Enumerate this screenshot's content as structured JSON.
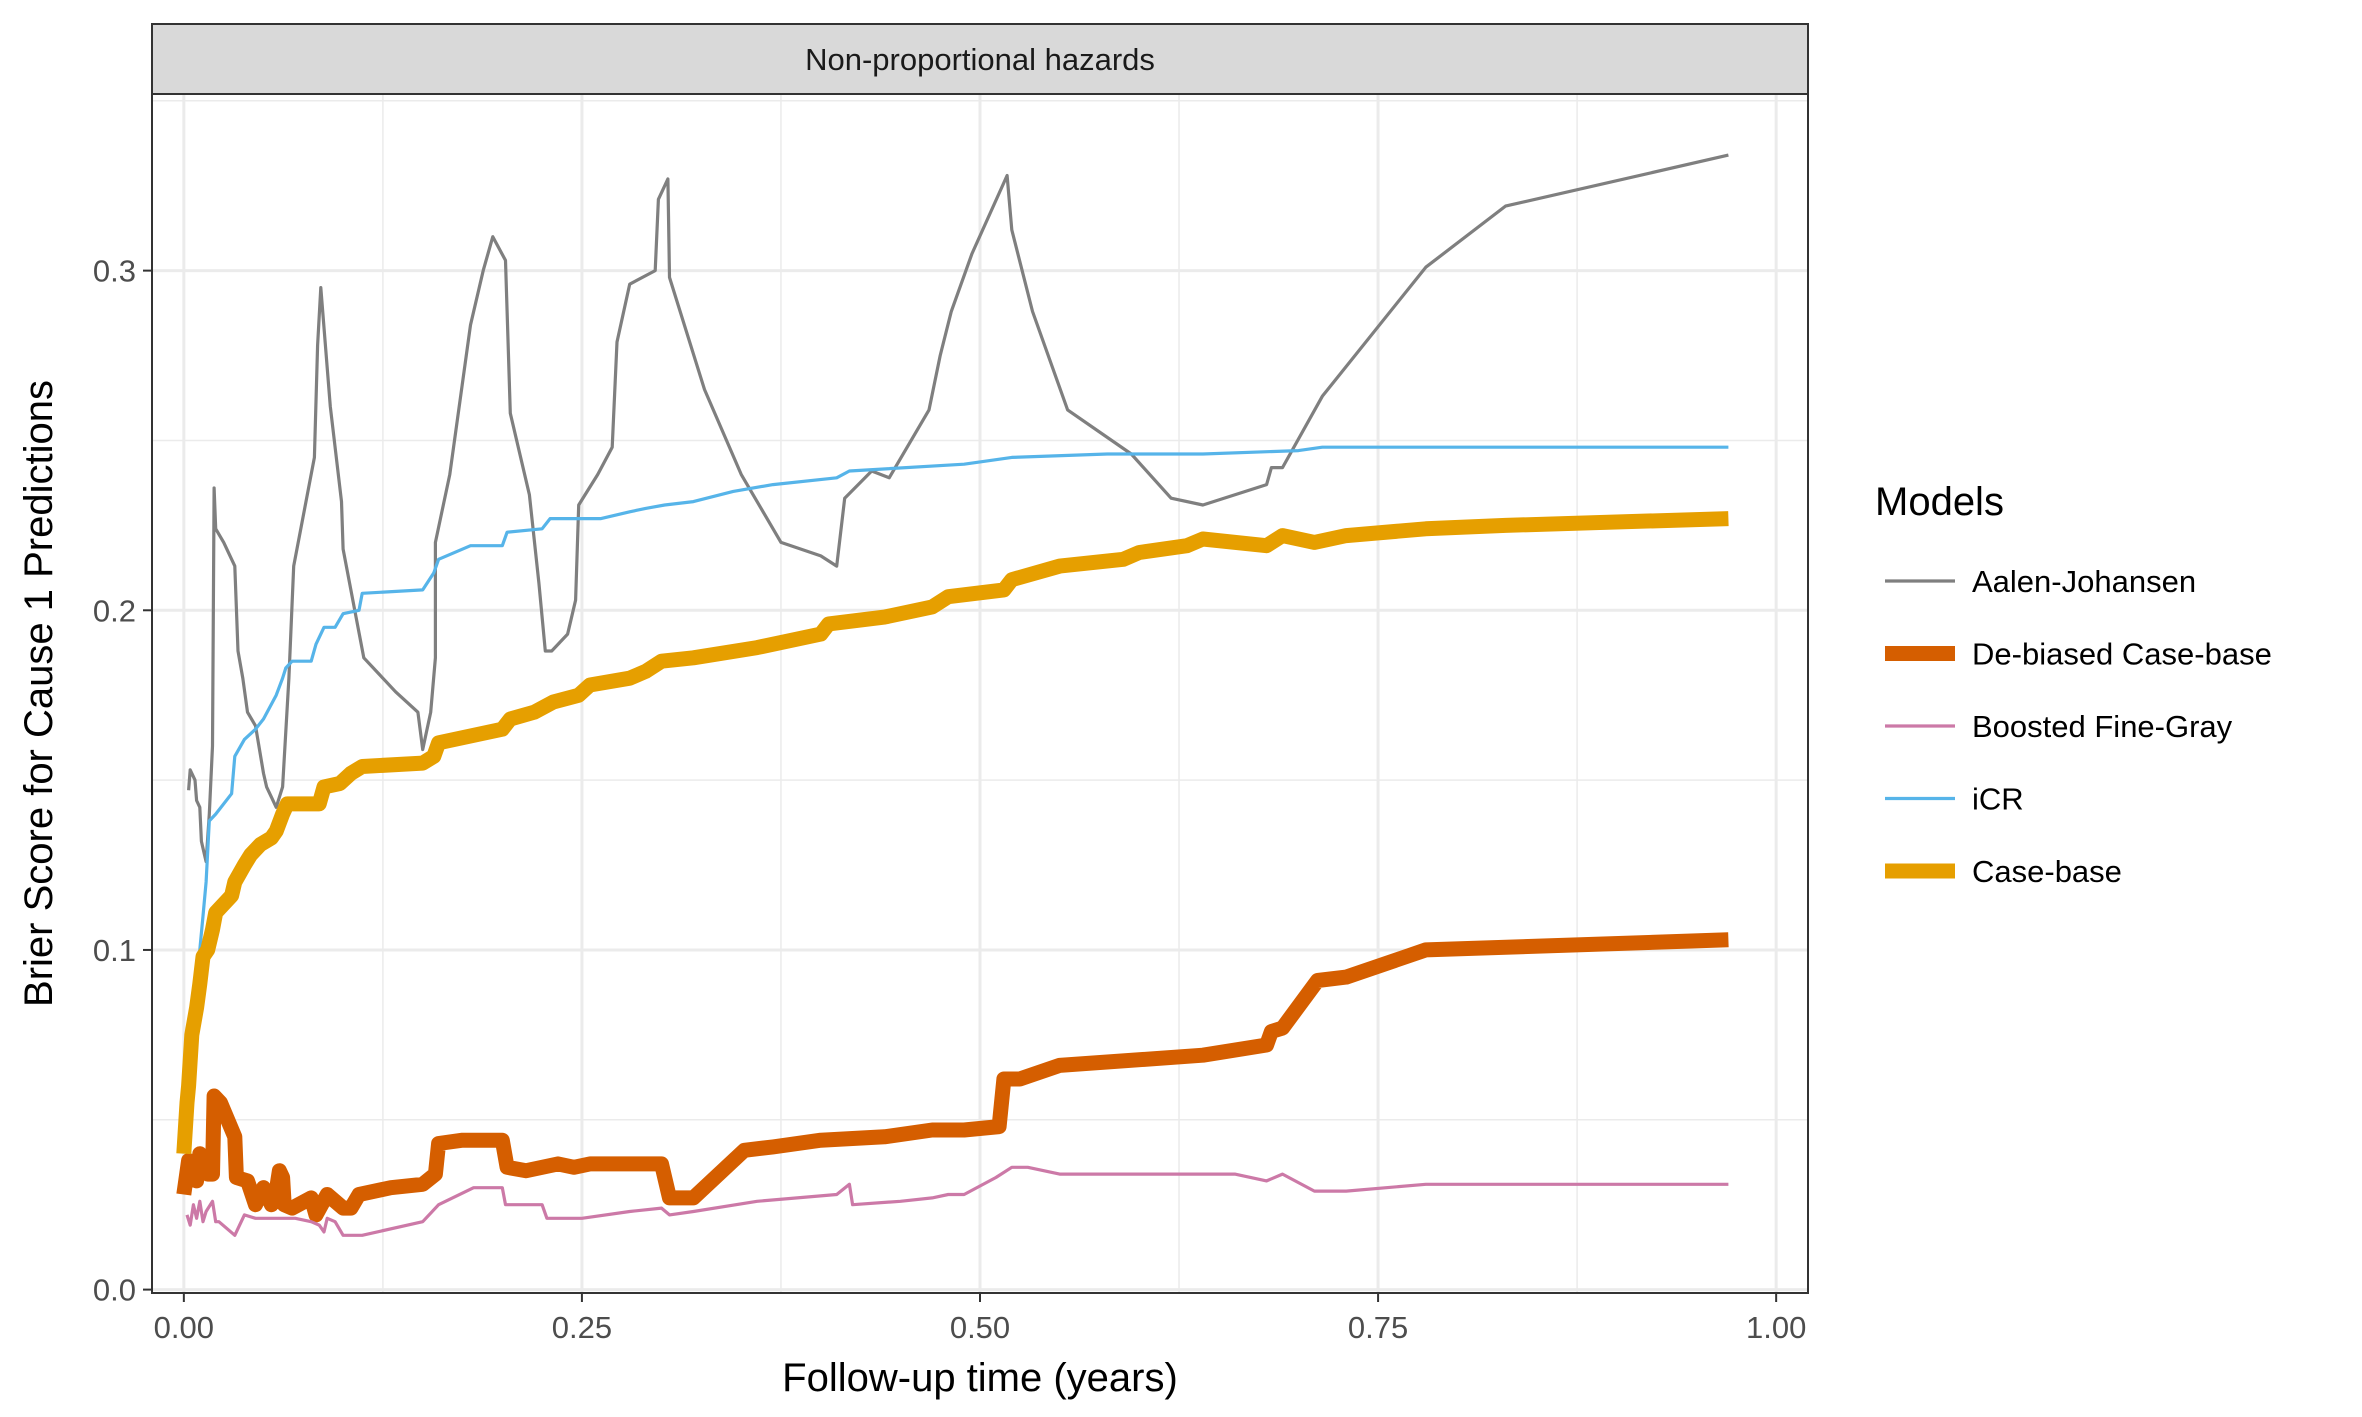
{
  "chart_data": {
    "type": "line",
    "facet_title": "Non-proportional hazards",
    "xlabel": "Follow-up time (years)",
    "ylabel": "Brier Score for Cause 1 Predictions",
    "xlim": [
      -0.02,
      1.02
    ],
    "ylim": [
      -0.001,
      0.352
    ],
    "x_ticks": [
      0.0,
      0.25,
      0.5,
      0.75,
      1.0
    ],
    "x_tick_labels": [
      "0.00",
      "0.25",
      "0.50",
      "0.75",
      "1.00"
    ],
    "y_ticks": [
      0.0,
      0.1,
      0.2,
      0.3
    ],
    "y_tick_labels": [
      "0.0",
      "0.1",
      "0.2",
      "0.3"
    ],
    "grid": true,
    "legend": {
      "title": "Models",
      "position": "right"
    },
    "series": [
      {
        "name": "Aalen-Johansen",
        "color": "#7f7f7f",
        "width": "thin",
        "points": [
          [
            0.003,
            0.147
          ],
          [
            0.004,
            0.153
          ],
          [
            0.007,
            0.15
          ],
          [
            0.008,
            0.144
          ],
          [
            0.01,
            0.142
          ],
          [
            0.011,
            0.132
          ],
          [
            0.013,
            0.128
          ],
          [
            0.014,
            0.126
          ],
          [
            0.016,
            0.14
          ],
          [
            0.018,
            0.16
          ],
          [
            0.019,
            0.236
          ],
          [
            0.02,
            0.224
          ],
          [
            0.025,
            0.22
          ],
          [
            0.032,
            0.213
          ],
          [
            0.034,
            0.188
          ],
          [
            0.037,
            0.18
          ],
          [
            0.04,
            0.17
          ],
          [
            0.045,
            0.166
          ],
          [
            0.05,
            0.152
          ],
          [
            0.052,
            0.148
          ],
          [
            0.055,
            0.145
          ],
          [
            0.058,
            0.142
          ],
          [
            0.062,
            0.148
          ],
          [
            0.066,
            0.18
          ],
          [
            0.069,
            0.213
          ],
          [
            0.082,
            0.245
          ],
          [
            0.084,
            0.278
          ],
          [
            0.086,
            0.295
          ],
          [
            0.092,
            0.26
          ],
          [
            0.099,
            0.232
          ],
          [
            0.1,
            0.218
          ],
          [
            0.113,
            0.186
          ],
          [
            0.133,
            0.176
          ],
          [
            0.147,
            0.17
          ],
          [
            0.15,
            0.159
          ],
          [
            0.155,
            0.17
          ],
          [
            0.158,
            0.186
          ],
          [
            0.158,
            0.22
          ],
          [
            0.167,
            0.24
          ],
          [
            0.18,
            0.284
          ],
          [
            0.188,
            0.3
          ],
          [
            0.194,
            0.31
          ],
          [
            0.202,
            0.303
          ],
          [
            0.205,
            0.258
          ],
          [
            0.217,
            0.234
          ],
          [
            0.223,
            0.208
          ],
          [
            0.227,
            0.188
          ],
          [
            0.231,
            0.188
          ],
          [
            0.241,
            0.193
          ],
          [
            0.246,
            0.203
          ],
          [
            0.248,
            0.231
          ],
          [
            0.26,
            0.24
          ],
          [
            0.269,
            0.248
          ],
          [
            0.272,
            0.279
          ],
          [
            0.28,
            0.296
          ],
          [
            0.296,
            0.3
          ],
          [
            0.298,
            0.321
          ],
          [
            0.304,
            0.327
          ],
          [
            0.305,
            0.298
          ],
          [
            0.327,
            0.265
          ],
          [
            0.35,
            0.24
          ],
          [
            0.375,
            0.22
          ],
          [
            0.4,
            0.216
          ],
          [
            0.41,
            0.213
          ],
          [
            0.415,
            0.233
          ],
          [
            0.432,
            0.241
          ],
          [
            0.443,
            0.239
          ],
          [
            0.468,
            0.259
          ],
          [
            0.475,
            0.275
          ],
          [
            0.482,
            0.288
          ],
          [
            0.495,
            0.305
          ],
          [
            0.517,
            0.328
          ],
          [
            0.52,
            0.312
          ],
          [
            0.533,
            0.288
          ],
          [
            0.555,
            0.259
          ],
          [
            0.595,
            0.246
          ],
          [
            0.62,
            0.233
          ],
          [
            0.64,
            0.231
          ],
          [
            0.68,
            0.237
          ],
          [
            0.683,
            0.242
          ],
          [
            0.69,
            0.242
          ],
          [
            0.715,
            0.263
          ],
          [
            0.78,
            0.301
          ],
          [
            0.83,
            0.319
          ],
          [
            0.97,
            0.334
          ]
        ]
      },
      {
        "name": "De-biased Case-base",
        "color": "#d55e00",
        "width": "thick",
        "points": [
          [
            0.0,
            0.028
          ],
          [
            0.003,
            0.038
          ],
          [
            0.008,
            0.032
          ],
          [
            0.01,
            0.04
          ],
          [
            0.015,
            0.034
          ],
          [
            0.018,
            0.034
          ],
          [
            0.019,
            0.057
          ],
          [
            0.023,
            0.055
          ],
          [
            0.032,
            0.045
          ],
          [
            0.033,
            0.033
          ],
          [
            0.04,
            0.032
          ],
          [
            0.045,
            0.025
          ],
          [
            0.05,
            0.03
          ],
          [
            0.055,
            0.025
          ],
          [
            0.058,
            0.029
          ],
          [
            0.06,
            0.035
          ],
          [
            0.062,
            0.033
          ],
          [
            0.063,
            0.025
          ],
          [
            0.068,
            0.024
          ],
          [
            0.08,
            0.027
          ],
          [
            0.083,
            0.022
          ],
          [
            0.09,
            0.028
          ],
          [
            0.1,
            0.024
          ],
          [
            0.105,
            0.024
          ],
          [
            0.11,
            0.028
          ],
          [
            0.13,
            0.03
          ],
          [
            0.15,
            0.031
          ],
          [
            0.158,
            0.034
          ],
          [
            0.16,
            0.043
          ],
          [
            0.175,
            0.044
          ],
          [
            0.2,
            0.044
          ],
          [
            0.203,
            0.036
          ],
          [
            0.215,
            0.035
          ],
          [
            0.225,
            0.036
          ],
          [
            0.235,
            0.037
          ],
          [
            0.245,
            0.036
          ],
          [
            0.255,
            0.037
          ],
          [
            0.29,
            0.037
          ],
          [
            0.3,
            0.037
          ],
          [
            0.305,
            0.027
          ],
          [
            0.32,
            0.027
          ],
          [
            0.352,
            0.041
          ],
          [
            0.37,
            0.042
          ],
          [
            0.4,
            0.044
          ],
          [
            0.44,
            0.045
          ],
          [
            0.47,
            0.047
          ],
          [
            0.49,
            0.047
          ],
          [
            0.512,
            0.048
          ],
          [
            0.515,
            0.062
          ],
          [
            0.525,
            0.062
          ],
          [
            0.55,
            0.066
          ],
          [
            0.64,
            0.069
          ],
          [
            0.68,
            0.072
          ],
          [
            0.683,
            0.076
          ],
          [
            0.69,
            0.077
          ],
          [
            0.712,
            0.091
          ],
          [
            0.73,
            0.092
          ],
          [
            0.78,
            0.1
          ],
          [
            0.97,
            0.103
          ]
        ]
      },
      {
        "name": "Boosted Fine-Gray",
        "color": "#cc79a7",
        "width": "thin",
        "points": [
          [
            0.002,
            0.022
          ],
          [
            0.004,
            0.019
          ],
          [
            0.006,
            0.025
          ],
          [
            0.008,
            0.021
          ],
          [
            0.01,
            0.026
          ],
          [
            0.012,
            0.02
          ],
          [
            0.014,
            0.023
          ],
          [
            0.018,
            0.026
          ],
          [
            0.02,
            0.02
          ],
          [
            0.022,
            0.02
          ],
          [
            0.032,
            0.016
          ],
          [
            0.038,
            0.022
          ],
          [
            0.045,
            0.021
          ],
          [
            0.06,
            0.021
          ],
          [
            0.07,
            0.021
          ],
          [
            0.08,
            0.02
          ],
          [
            0.085,
            0.019
          ],
          [
            0.088,
            0.017
          ],
          [
            0.09,
            0.021
          ],
          [
            0.095,
            0.02
          ],
          [
            0.1,
            0.016
          ],
          [
            0.112,
            0.016
          ],
          [
            0.15,
            0.02
          ],
          [
            0.16,
            0.025
          ],
          [
            0.182,
            0.03
          ],
          [
            0.2,
            0.03
          ],
          [
            0.202,
            0.025
          ],
          [
            0.225,
            0.025
          ],
          [
            0.228,
            0.021
          ],
          [
            0.25,
            0.021
          ],
          [
            0.28,
            0.023
          ],
          [
            0.3,
            0.024
          ],
          [
            0.305,
            0.022
          ],
          [
            0.32,
            0.023
          ],
          [
            0.36,
            0.026
          ],
          [
            0.41,
            0.028
          ],
          [
            0.418,
            0.031
          ],
          [
            0.42,
            0.025
          ],
          [
            0.45,
            0.026
          ],
          [
            0.47,
            0.027
          ],
          [
            0.48,
            0.028
          ],
          [
            0.49,
            0.028
          ],
          [
            0.51,
            0.033
          ],
          [
            0.52,
            0.036
          ],
          [
            0.53,
            0.036
          ],
          [
            0.55,
            0.034
          ],
          [
            0.6,
            0.034
          ],
          [
            0.66,
            0.034
          ],
          [
            0.68,
            0.032
          ],
          [
            0.69,
            0.034
          ],
          [
            0.71,
            0.029
          ],
          [
            0.73,
            0.029
          ],
          [
            0.78,
            0.031
          ],
          [
            0.97,
            0.031
          ]
        ]
      },
      {
        "name": "iCR",
        "color": "#56b4e9",
        "width": "thin",
        "points": [
          [
            0.008,
            0.083
          ],
          [
            0.01,
            0.1
          ],
          [
            0.012,
            0.11
          ],
          [
            0.014,
            0.12
          ],
          [
            0.016,
            0.138
          ],
          [
            0.02,
            0.14
          ],
          [
            0.03,
            0.146
          ],
          [
            0.032,
            0.157
          ],
          [
            0.038,
            0.162
          ],
          [
            0.045,
            0.165
          ],
          [
            0.05,
            0.168
          ],
          [
            0.058,
            0.175
          ],
          [
            0.062,
            0.18
          ],
          [
            0.064,
            0.183
          ],
          [
            0.068,
            0.185
          ],
          [
            0.08,
            0.185
          ],
          [
            0.083,
            0.19
          ],
          [
            0.088,
            0.195
          ],
          [
            0.095,
            0.195
          ],
          [
            0.1,
            0.199
          ],
          [
            0.11,
            0.2
          ],
          [
            0.112,
            0.205
          ],
          [
            0.15,
            0.206
          ],
          [
            0.157,
            0.211
          ],
          [
            0.16,
            0.215
          ],
          [
            0.18,
            0.219
          ],
          [
            0.2,
            0.219
          ],
          [
            0.203,
            0.223
          ],
          [
            0.225,
            0.224
          ],
          [
            0.23,
            0.227
          ],
          [
            0.262,
            0.227
          ],
          [
            0.28,
            0.229
          ],
          [
            0.29,
            0.23
          ],
          [
            0.302,
            0.231
          ],
          [
            0.32,
            0.232
          ],
          [
            0.345,
            0.235
          ],
          [
            0.37,
            0.237
          ],
          [
            0.41,
            0.239
          ],
          [
            0.418,
            0.241
          ],
          [
            0.49,
            0.243
          ],
          [
            0.52,
            0.245
          ],
          [
            0.58,
            0.246
          ],
          [
            0.64,
            0.246
          ],
          [
            0.7,
            0.247
          ],
          [
            0.715,
            0.248
          ],
          [
            0.97,
            0.248
          ]
        ]
      },
      {
        "name": "Case-base",
        "color": "#e69f00",
        "width": "thick",
        "points": [
          [
            0.0,
            0.04
          ],
          [
            0.002,
            0.055
          ],
          [
            0.003,
            0.06
          ],
          [
            0.005,
            0.075
          ],
          [
            0.008,
            0.083
          ],
          [
            0.01,
            0.09
          ],
          [
            0.012,
            0.098
          ],
          [
            0.015,
            0.1
          ],
          [
            0.018,
            0.106
          ],
          [
            0.02,
            0.111
          ],
          [
            0.03,
            0.116
          ],
          [
            0.032,
            0.12
          ],
          [
            0.038,
            0.125
          ],
          [
            0.042,
            0.128
          ],
          [
            0.048,
            0.131
          ],
          [
            0.055,
            0.133
          ],
          [
            0.058,
            0.135
          ],
          [
            0.062,
            0.14
          ],
          [
            0.065,
            0.143
          ],
          [
            0.075,
            0.143
          ],
          [
            0.085,
            0.143
          ],
          [
            0.088,
            0.148
          ],
          [
            0.098,
            0.149
          ],
          [
            0.105,
            0.152
          ],
          [
            0.112,
            0.154
          ],
          [
            0.15,
            0.155
          ],
          [
            0.157,
            0.157
          ],
          [
            0.16,
            0.161
          ],
          [
            0.2,
            0.165
          ],
          [
            0.205,
            0.168
          ],
          [
            0.22,
            0.17
          ],
          [
            0.232,
            0.173
          ],
          [
            0.248,
            0.175
          ],
          [
            0.255,
            0.178
          ],
          [
            0.28,
            0.18
          ],
          [
            0.29,
            0.182
          ],
          [
            0.3,
            0.185
          ],
          [
            0.32,
            0.186
          ],
          [
            0.36,
            0.189
          ],
          [
            0.4,
            0.193
          ],
          [
            0.405,
            0.196
          ],
          [
            0.44,
            0.198
          ],
          [
            0.47,
            0.201
          ],
          [
            0.48,
            0.204
          ],
          [
            0.515,
            0.206
          ],
          [
            0.52,
            0.209
          ],
          [
            0.55,
            0.213
          ],
          [
            0.59,
            0.215
          ],
          [
            0.6,
            0.217
          ],
          [
            0.63,
            0.219
          ],
          [
            0.64,
            0.221
          ],
          [
            0.68,
            0.219
          ],
          [
            0.69,
            0.222
          ],
          [
            0.71,
            0.22
          ],
          [
            0.73,
            0.222
          ],
          [
            0.78,
            0.224
          ],
          [
            0.83,
            0.225
          ],
          [
            0.97,
            0.227
          ]
        ]
      }
    ]
  }
}
